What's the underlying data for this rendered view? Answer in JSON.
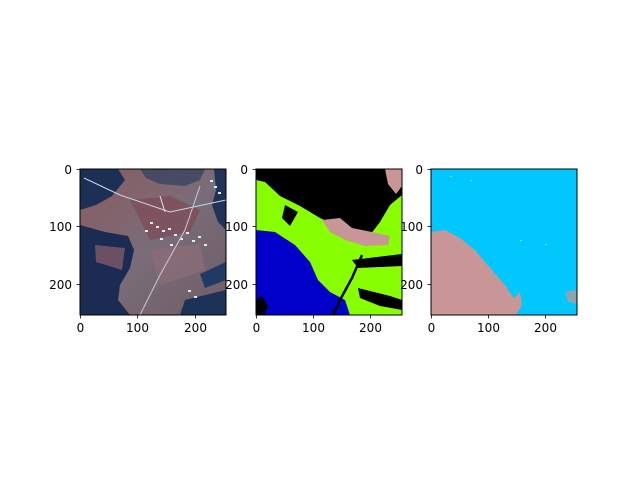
{
  "figure": {
    "panels": [
      {
        "name": "satellite-image",
        "xticks": [
          "0",
          "100",
          "200"
        ],
        "yticks": [
          "0",
          "100",
          "200"
        ]
      },
      {
        "name": "segmentation-mask-a",
        "xticks": [
          "0",
          "100",
          "200"
        ],
        "yticks": [
          "0",
          "100",
          "200"
        ],
        "colors": {
          "black": "#000000",
          "green": "#88ff00",
          "blue": "#0000c8",
          "pink": "#c89696"
        }
      },
      {
        "name": "segmentation-mask-b",
        "xticks": [
          "0",
          "100",
          "200"
        ],
        "yticks": [
          "0",
          "100",
          "200"
        ],
        "colors": {
          "cyan": "#00c8ff",
          "pink": "#c89696"
        }
      }
    ]
  }
}
